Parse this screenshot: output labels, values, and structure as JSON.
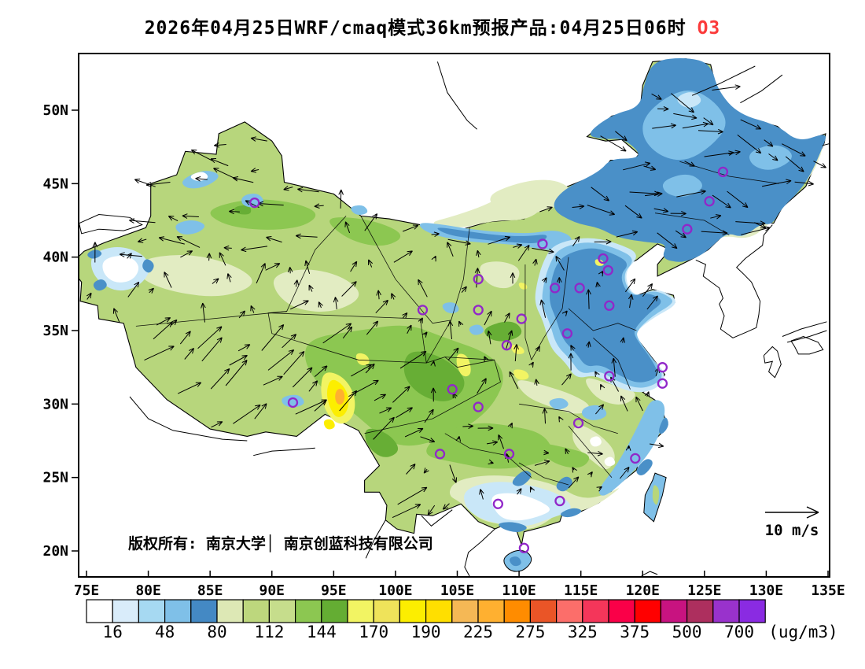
{
  "title": {
    "text": "2026年04月25日WRF/cmaq模式36km预报产品:04月25日06时",
    "pollutant": "O3",
    "pollutant_color": "#fb3b3b"
  },
  "axes": {
    "lat_ticks": [
      {
        "label": "50N",
        "lat": 50
      },
      {
        "label": "45N",
        "lat": 45
      },
      {
        "label": "40N",
        "lat": 40
      },
      {
        "label": "35N",
        "lat": 35
      },
      {
        "label": "30N",
        "lat": 30
      },
      {
        "label": "25N",
        "lat": 25
      },
      {
        "label": "20N",
        "lat": 20
      }
    ],
    "lon_ticks": [
      {
        "label": "75E",
        "lon": 75
      },
      {
        "label": "80E",
        "lon": 80
      },
      {
        "label": "85E",
        "lon": 85
      },
      {
        "label": "90E",
        "lon": 90
      },
      {
        "label": "95E",
        "lon": 95
      },
      {
        "label": "100E",
        "lon": 100
      },
      {
        "label": "105E",
        "lon": 105
      },
      {
        "label": "110E",
        "lon": 110
      },
      {
        "label": "115E",
        "lon": 115
      },
      {
        "label": "120E",
        "lon": 120
      },
      {
        "label": "125E",
        "lon": 125
      },
      {
        "label": "130E",
        "lon": 130
      },
      {
        "label": "135E",
        "lon": 135
      }
    ]
  },
  "map": {
    "copyright": "版权所有: 南京大学│ 南京创蓝科技有限公司",
    "wind_legend": "10 m/s"
  },
  "colorbar": {
    "unit": "(ug/m3)",
    "tick_labels": [
      "16",
      "48",
      "80",
      "112",
      "144",
      "170",
      "190",
      "225",
      "275",
      "325",
      "375",
      "500",
      "700"
    ],
    "cell_colors": [
      "#ffffff",
      "#d9ecfa",
      "#a6d9f2",
      "#7fc0e8",
      "#4489c4",
      "#dde8b5",
      "#bdd77d",
      "#c6dd8c",
      "#8cc751",
      "#64ad33",
      "#f2f463",
      "#efe35a",
      "#fcee00",
      "#ffdf00",
      "#f5b855",
      "#ffb030",
      "#ff8c00",
      "#ea5527",
      "#fc6e6a",
      "#f4365a",
      "#fa0048",
      "#ff0000",
      "#c81380",
      "#ad2f5e",
      "#9932cc",
      "#8a2be2"
    ]
  },
  "markers": {
    "color": "#9127c9",
    "stations_lonlat": [
      [
        88.6,
        43.7
      ],
      [
        126.5,
        45.8
      ],
      [
        125.4,
        43.8
      ],
      [
        123.6,
        41.9
      ],
      [
        111.9,
        40.9
      ],
      [
        116.8,
        39.9
      ],
      [
        117.2,
        39.1
      ],
      [
        114.9,
        37.9
      ],
      [
        112.9,
        37.9
      ],
      [
        106.7,
        38.5
      ],
      [
        117.3,
        36.7
      ],
      [
        102.2,
        36.4
      ],
      [
        106.7,
        36.4
      ],
      [
        110.2,
        35.8
      ],
      [
        113.9,
        34.8
      ],
      [
        109.0,
        34.0
      ],
      [
        121.6,
        32.5
      ],
      [
        117.3,
        31.9
      ],
      [
        121.6,
        31.4
      ],
      [
        104.6,
        31.0
      ],
      [
        106.7,
        29.8
      ],
      [
        91.7,
        30.1
      ],
      [
        114.8,
        28.7
      ],
      [
        103.6,
        26.6
      ],
      [
        109.2,
        26.6
      ],
      [
        119.4,
        26.3
      ],
      [
        113.3,
        23.4
      ],
      [
        108.3,
        23.2
      ],
      [
        110.4,
        20.2
      ]
    ]
  },
  "chart_data": {
    "type": "heatmap",
    "title": "WRF/CMAQ 36km O3 forecast",
    "scale_breakpoints": [
      16,
      48,
      80,
      112,
      144,
      170,
      190,
      225,
      275,
      325,
      375,
      500,
      700
    ],
    "unit": "ug/m3",
    "lon_range": [
      75,
      135
    ],
    "lat_range": [
      20,
      50
    ],
    "wind_reference_speed": "10 m/s"
  }
}
